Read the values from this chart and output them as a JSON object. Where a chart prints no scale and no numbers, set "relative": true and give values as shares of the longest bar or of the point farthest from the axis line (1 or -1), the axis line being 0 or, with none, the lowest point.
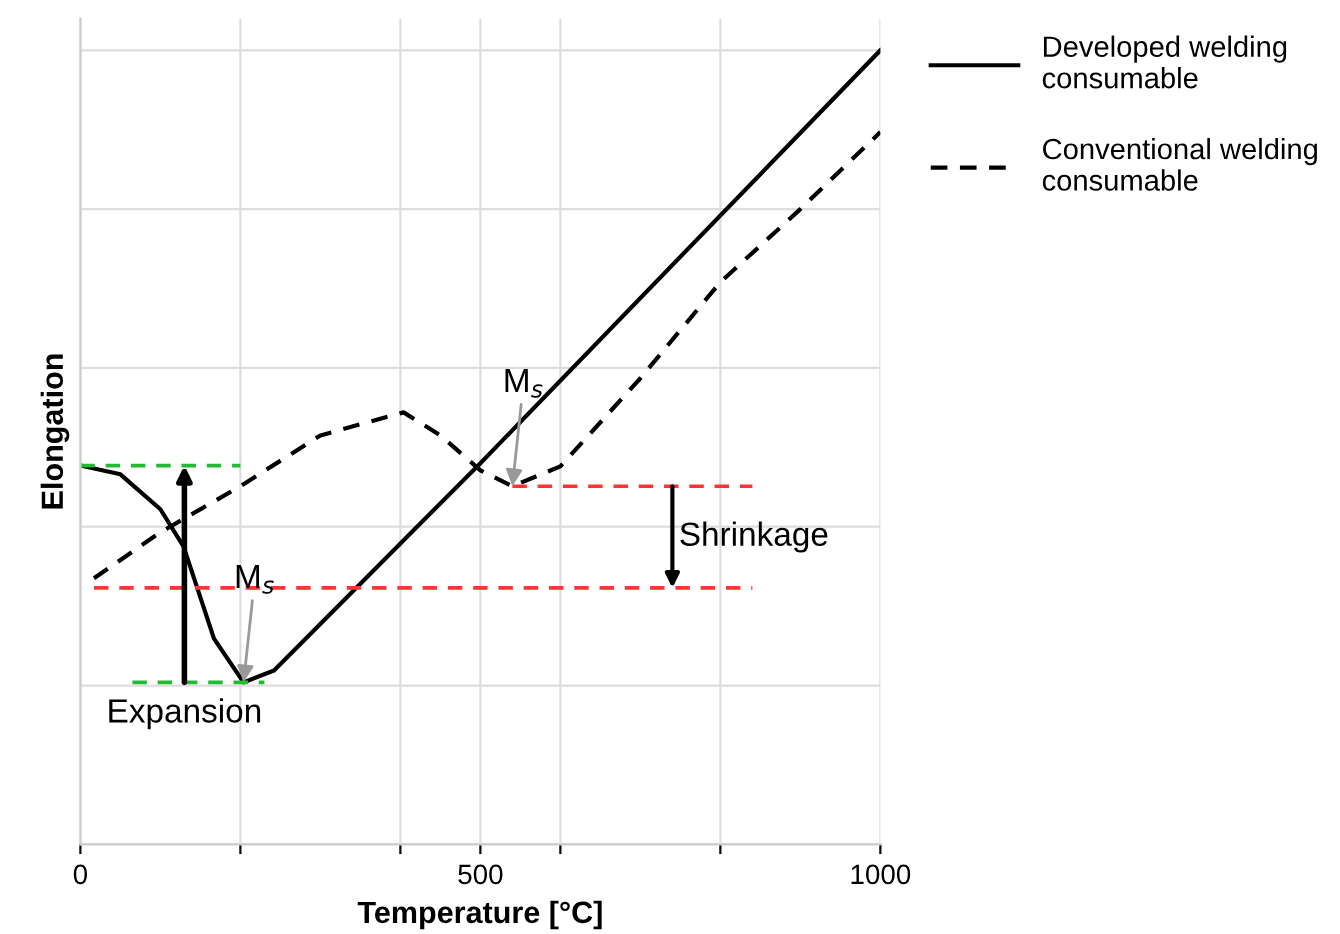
{
  "chart_data": {
    "type": "line",
    "relative": true,
    "xlabel": "Temperature [°C]",
    "ylabel": "Elongation",
    "xlim": [
      0,
      1000
    ],
    "xticks": [
      0,
      {
        "value": 200,
        "label": null
      },
      {
        "value": 400,
        "label": null
      },
      500,
      {
        "value": 600,
        "label": null
      },
      {
        "value": 800,
        "label": null
      },
      1000
    ],
    "grid": true,
    "legend": "right",
    "marker": "none",
    "series": [
      {
        "name": "Developed welding consumable",
        "color": "#000000",
        "line_style": "solid",
        "x": [
          0,
          50,
          100,
          129,
          167,
          204,
          242,
          500,
          1000
        ],
        "values": [
          0.477,
          0.466,
          0.422,
          0.375,
          0.259,
          0.204,
          0.219,
          0.48,
          1.0
        ]
      },
      {
        "name": "Conventional welding consumable",
        "color": "#000000",
        "line_style": "dashed",
        "x": [
          17,
          100,
          200,
          300,
          404,
          450,
          500,
          540,
          600,
          700,
          800,
          900,
          1000
        ],
        "values": [
          0.335,
          0.393,
          0.451,
          0.515,
          0.544,
          0.515,
          0.471,
          0.451,
          0.476,
          0.587,
          0.708,
          0.8,
          0.897
        ]
      },
      {
        "color": "#22bb33",
        "line_style": "dashed",
        "x": [
          0,
          200
        ],
        "values": [
          0.477,
          0.477
        ]
      },
      {
        "color": "#22bb33",
        "line_style": "dashed",
        "x": [
          65,
          230
        ],
        "values": [
          0.204,
          0.204
        ]
      },
      {
        "color": "#ff3333",
        "line_style": "dashed",
        "x": [
          540,
          840
        ],
        "values": [
          0.451,
          0.451
        ]
      },
      {
        "color": "#ff3333",
        "line_style": "dashed",
        "x": [
          17,
          840
        ],
        "values": [
          0.323,
          0.323
        ]
      }
    ],
    "annotations": [
      {
        "text": "M$_{s}$",
        "x": 204,
        "y": 0.204
      },
      {
        "text": "M$_{s}$",
        "x": 540,
        "y": 0.451
      },
      {
        "text": "Expansion",
        "x": 130,
        "y": 0.204
      },
      {
        "text": "Shrinkage",
        "x": 740,
        "y": 0.323
      }
    ]
  }
}
